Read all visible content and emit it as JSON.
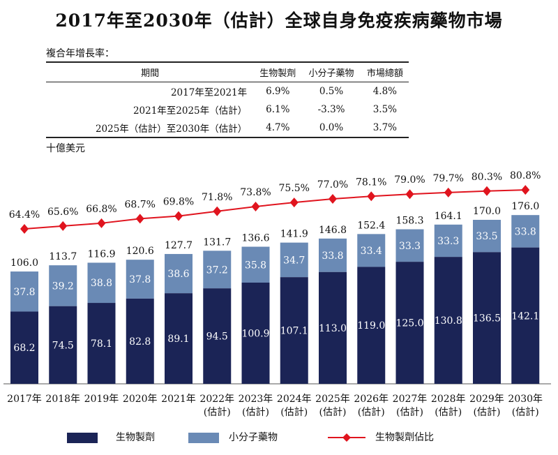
{
  "title": "2017年至2030年（估計）全球自身免疫疾病藥物市場",
  "cagr": {
    "label": "複合年增長率：",
    "headers": [
      "期間",
      "生物製劑",
      "小分子藥物",
      "市場總額"
    ],
    "rows": [
      [
        "2017年至2021年",
        "6.9%",
        "0.5%",
        "4.8%"
      ],
      [
        "2021年至2025年（估計）",
        "6.1%",
        "-3.3%",
        "3.5%"
      ],
      [
        "2025年（估計）至2030年（估計）",
        "4.7%",
        "0.0%",
        "3.7%"
      ]
    ]
  },
  "unit": "十億美元",
  "chart_data": {
    "type": "bar",
    "stacked": true,
    "categories": [
      "2017年",
      "2018年",
      "2019年",
      "2020年",
      "2021年",
      "2022年\n(估計)",
      "2023年\n(估計)",
      "2024年\n(估計)",
      "2025年\n(估計)",
      "2026年\n(估計)",
      "2027年\n(估計)",
      "2028年\n(估計)",
      "2029年\n(估計)",
      "2030年\n(估計)"
    ],
    "series": [
      {
        "name": "生物製劑",
        "color": "#1b2456",
        "values": [
          68.2,
          74.5,
          78.1,
          82.8,
          89.1,
          94.5,
          100.9,
          107.1,
          113.0,
          119.0,
          125.0,
          130.8,
          136.5,
          142.1
        ]
      },
      {
        "name": "小分子藥物",
        "color": "#6a8ab5",
        "values": [
          37.8,
          39.2,
          38.8,
          37.8,
          38.6,
          37.2,
          35.8,
          34.7,
          33.8,
          33.4,
          33.3,
          33.3,
          33.5,
          33.8
        ]
      }
    ],
    "totals": [
      "106.0",
      "113.7",
      "116.9",
      "120.6",
      "127.7",
      "131.7",
      "136.6",
      "141.9",
      "146.8",
      "152.4",
      "158.3",
      "164.1",
      "170.0",
      "176.0"
    ],
    "line": {
      "name": "生物製劑佔比",
      "color": "#e0141e",
      "values": [
        64.4,
        65.6,
        66.8,
        68.7,
        69.8,
        71.8,
        73.8,
        75.5,
        77.0,
        78.1,
        79.0,
        79.7,
        80.3,
        80.8
      ]
    }
  }
}
